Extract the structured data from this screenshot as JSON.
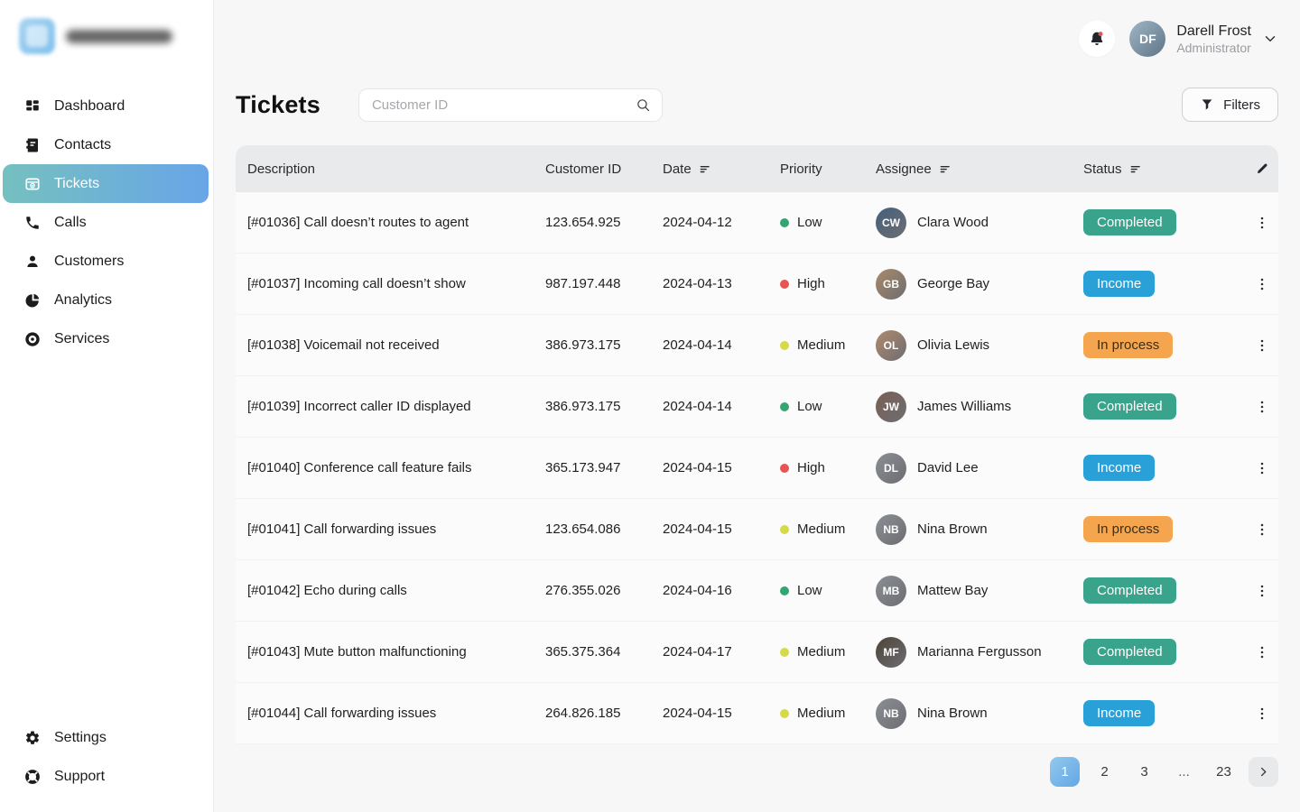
{
  "sidebar": {
    "items": [
      {
        "label": "Dashboard",
        "icon": "dashboard-icon",
        "active": false
      },
      {
        "label": "Contacts",
        "icon": "contacts-icon",
        "active": false
      },
      {
        "label": "Tickets",
        "icon": "ticket-icon",
        "active": true
      },
      {
        "label": "Calls",
        "icon": "phone-icon",
        "active": false
      },
      {
        "label": "Customers",
        "icon": "customers-icon",
        "active": false
      },
      {
        "label": "Analytics",
        "icon": "analytics-icon",
        "active": false
      },
      {
        "label": "Services",
        "icon": "services-icon",
        "active": false
      }
    ],
    "footer_items": [
      {
        "label": "Settings",
        "icon": "settings-icon",
        "active": false
      },
      {
        "label": "Support",
        "icon": "support-icon",
        "active": false
      }
    ],
    "active_gradient": [
      "#75c0bf",
      "#68a5e8"
    ]
  },
  "topbar": {
    "user": {
      "name": "Darell Frost",
      "role": "Administrator"
    },
    "notification_dot_color": "#d95757"
  },
  "header": {
    "title": "Tickets",
    "search_placeholder": "Customer ID",
    "filters_label": "Filters"
  },
  "table": {
    "columns": [
      {
        "key": "desc",
        "label": "Description",
        "sortable": false
      },
      {
        "key": "custid",
        "label": "Customer ID",
        "sortable": false
      },
      {
        "key": "date",
        "label": "Date",
        "sortable": true
      },
      {
        "key": "priority",
        "label": "Priority",
        "sortable": false
      },
      {
        "key": "assignee",
        "label": "Assignee",
        "sortable": true
      },
      {
        "key": "status",
        "label": "Status",
        "sortable": true
      }
    ],
    "rows": [
      {
        "description": "[#01036] Call doesn’t routes to agent",
        "customer_id": "123.654.925",
        "date": "2024-04-12",
        "priority": "Low",
        "assignee": "Clara Wood",
        "status": "Completed"
      },
      {
        "description": "[#01037] Incoming call doesn’t show",
        "customer_id": "987.197.448",
        "date": "2024-04-13",
        "priority": "High",
        "assignee": "George Bay",
        "status": "Income"
      },
      {
        "description": "[#01038] Voicemail not received",
        "customer_id": "386.973.175",
        "date": "2024-04-14",
        "priority": "Medium",
        "assignee": "Olivia Lewis",
        "status": "In process"
      },
      {
        "description": "[#01039] Incorrect caller ID displayed",
        "customer_id": "386.973.175",
        "date": "2024-04-14",
        "priority": "Low",
        "assignee": "James Williams",
        "status": "Completed"
      },
      {
        "description": "[#01040] Conference call feature fails",
        "customer_id": "365.173.947",
        "date": "2024-04-15",
        "priority": "High",
        "assignee": "David Lee",
        "status": "Income"
      },
      {
        "description": "[#01041] Call forwarding issues",
        "customer_id": "123.654.086",
        "date": "2024-04-15",
        "priority": "Medium",
        "assignee": "Nina Brown",
        "status": "In process"
      },
      {
        "description": "[#01042] Echo during calls",
        "customer_id": "276.355.026",
        "date": "2024-04-16",
        "priority": "Low",
        "assignee": "Mattew Bay",
        "status": "Completed"
      },
      {
        "description": "[#01043] Mute button malfunctioning",
        "customer_id": "365.375.364",
        "date": "2024-04-17",
        "priority": "Medium",
        "assignee": "Marianna Fergusson",
        "status": "Completed"
      },
      {
        "description": "[#01044] Call forwarding issues",
        "customer_id": "264.826.185",
        "date": "2024-04-15",
        "priority": "Medium",
        "assignee": "Nina Brown",
        "status": "Income"
      }
    ]
  },
  "priority_colors": {
    "Low": "#33a573",
    "Medium": "#d5da49",
    "High": "#e85454"
  },
  "status_styles": {
    "Completed": {
      "bg": "#3aa38c",
      "text": "#ffffff"
    },
    "Income": {
      "bg": "#2aa0d8",
      "text": "#ffffff"
    },
    "In process": {
      "bg": "#f6a54f",
      "text": "#3b2f16"
    }
  },
  "pagination": {
    "pages": [
      "1",
      "2",
      "3",
      "...",
      "23"
    ],
    "active": "1"
  }
}
